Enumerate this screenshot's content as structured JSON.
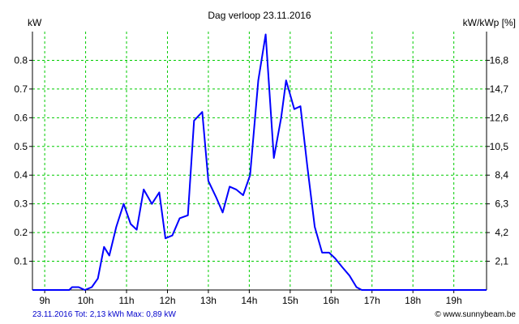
{
  "chart_data": {
    "type": "line",
    "title": "Dag  verloop 23.11.2016",
    "ylabel_left": "kW",
    "ylabel_right": "kW/kWp [%]",
    "xlim": [
      8.7,
      19.8
    ],
    "ylim": [
      0,
      0.9
    ],
    "grid": true,
    "x_ticks": [
      {
        "value": 9,
        "label": "9h"
      },
      {
        "value": 10,
        "label": "10h"
      },
      {
        "value": 11,
        "label": "11h"
      },
      {
        "value": 12,
        "label": "12h"
      },
      {
        "value": 13,
        "label": "13h"
      },
      {
        "value": 14,
        "label": "14h"
      },
      {
        "value": 15,
        "label": "15h"
      },
      {
        "value": 16,
        "label": "16h"
      },
      {
        "value": 17,
        "label": "17h"
      },
      {
        "value": 18,
        "label": "18h"
      },
      {
        "value": 19,
        "label": "19h"
      }
    ],
    "y_ticks_left": [
      {
        "value": 0.1,
        "label": "0.1"
      },
      {
        "value": 0.2,
        "label": "0.2"
      },
      {
        "value": 0.3,
        "label": "0.3"
      },
      {
        "value": 0.4,
        "label": "0.4"
      },
      {
        "value": 0.5,
        "label": "0.5"
      },
      {
        "value": 0.6,
        "label": "0.6"
      },
      {
        "value": 0.7,
        "label": "0.7"
      },
      {
        "value": 0.8,
        "label": "0.8"
      }
    ],
    "y_ticks_right": [
      {
        "value": 0.1,
        "label": "2,1"
      },
      {
        "value": 0.2,
        "label": "4,2"
      },
      {
        "value": 0.3,
        "label": "6,3"
      },
      {
        "value": 0.4,
        "label": "8,4"
      },
      {
        "value": 0.5,
        "label": "10,5"
      },
      {
        "value": 0.6,
        "label": "12,6"
      },
      {
        "value": 0.7,
        "label": "14,7"
      },
      {
        "value": 0.8,
        "label": "16,8"
      }
    ],
    "series": [
      {
        "color": "#0000ff",
        "points": [
          [
            8.7,
            0.0
          ],
          [
            9.6,
            0.0
          ],
          [
            9.67,
            0.01
          ],
          [
            9.83,
            0.01
          ],
          [
            9.98,
            0.0
          ],
          [
            10.15,
            0.01
          ],
          [
            10.3,
            0.04
          ],
          [
            10.45,
            0.15
          ],
          [
            10.58,
            0.12
          ],
          [
            10.75,
            0.22
          ],
          [
            10.93,
            0.3
          ],
          [
            11.1,
            0.23
          ],
          [
            11.25,
            0.21
          ],
          [
            11.42,
            0.35
          ],
          [
            11.62,
            0.3
          ],
          [
            11.8,
            0.34
          ],
          [
            11.95,
            0.18
          ],
          [
            12.12,
            0.19
          ],
          [
            12.3,
            0.25
          ],
          [
            12.5,
            0.26
          ],
          [
            12.65,
            0.59
          ],
          [
            12.85,
            0.62
          ],
          [
            13.0,
            0.38
          ],
          [
            13.2,
            0.32
          ],
          [
            13.35,
            0.27
          ],
          [
            13.52,
            0.36
          ],
          [
            13.68,
            0.35
          ],
          [
            13.85,
            0.33
          ],
          [
            14.02,
            0.4
          ],
          [
            14.22,
            0.73
          ],
          [
            14.4,
            0.89
          ],
          [
            14.6,
            0.46
          ],
          [
            14.78,
            0.6
          ],
          [
            14.9,
            0.73
          ],
          [
            15.1,
            0.63
          ],
          [
            15.25,
            0.64
          ],
          [
            15.42,
            0.43
          ],
          [
            15.6,
            0.22
          ],
          [
            15.78,
            0.13
          ],
          [
            15.95,
            0.13
          ],
          [
            16.1,
            0.11
          ],
          [
            16.27,
            0.08
          ],
          [
            16.45,
            0.05
          ],
          [
            16.62,
            0.01
          ],
          [
            16.75,
            0.0
          ],
          [
            19.8,
            0.0
          ]
        ]
      }
    ]
  },
  "footer": {
    "stats": "23.11.2016 Tot: 2,13 kWh Max: 0,89 kW",
    "watermark": "© www.sunnybeam.be"
  },
  "colors": {
    "axis": "#000000",
    "grid": "#00cc00",
    "series": "#0000ff",
    "footer_stats": "#0000cc",
    "background": "#ffffff"
  }
}
